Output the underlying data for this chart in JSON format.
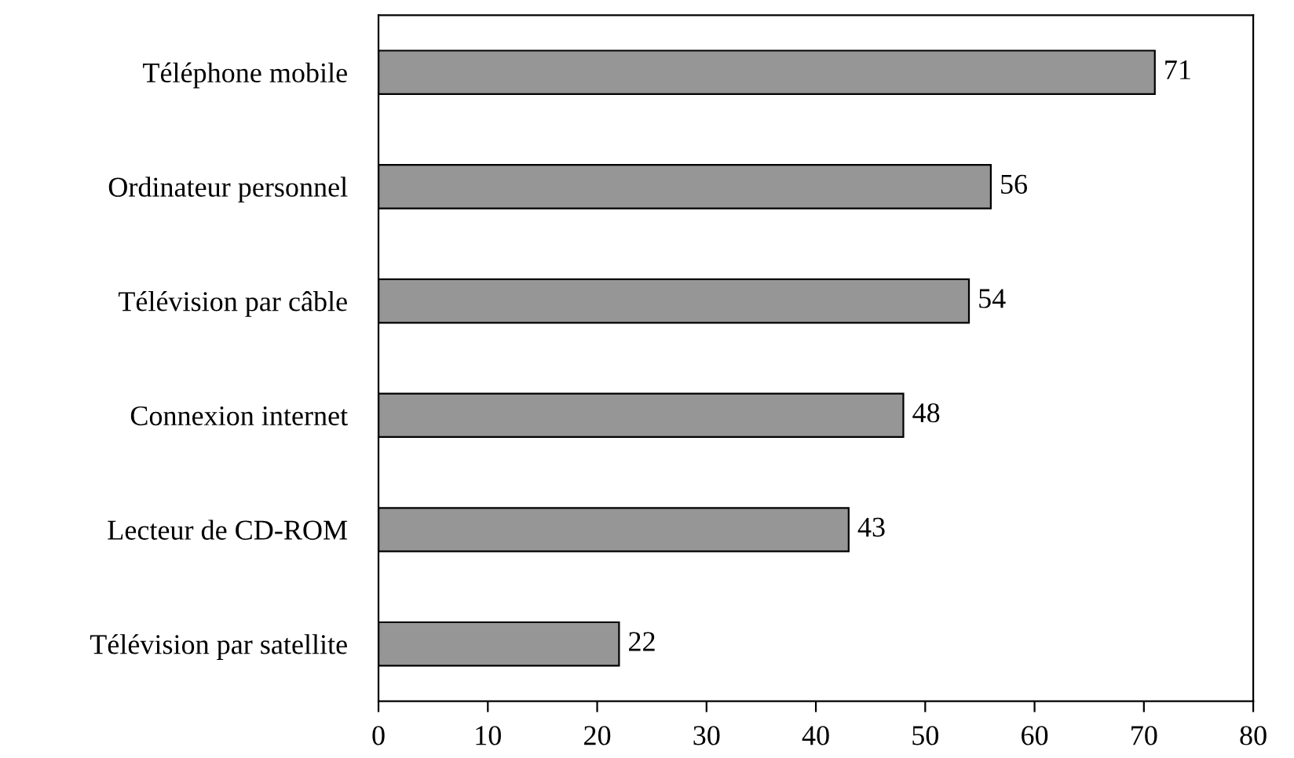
{
  "chart_data": {
    "type": "bar",
    "orientation": "horizontal",
    "categories": [
      "Téléphone mobile",
      "Ordinateur personnel",
      "Télévision par câble",
      "Connexion internet",
      "Lecteur de CD-ROM",
      "Télévision par satellite"
    ],
    "values": [
      71,
      56,
      54,
      48,
      43,
      22
    ],
    "color": "#969696",
    "data_labels": true,
    "xlim": [
      0,
      80
    ],
    "xticks": [
      0,
      10,
      20,
      30,
      40,
      50,
      60,
      70,
      80
    ],
    "grid": false
  }
}
